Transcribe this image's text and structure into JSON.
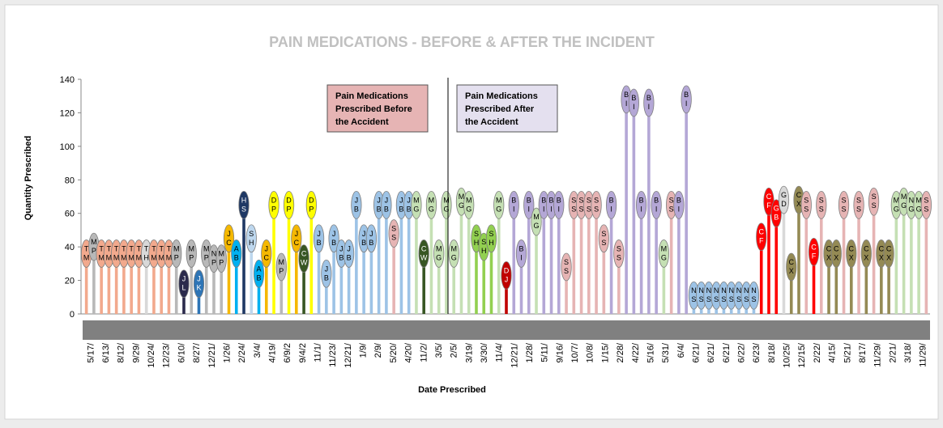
{
  "chart_data": {
    "type": "bar",
    "title": "PAIN MEDICATIONS - BEFORE & AFTER THE INCIDENT",
    "xlabel": "Date Prescribed",
    "ylabel": "Quantity Prescribed",
    "ylim": [
      0,
      140
    ],
    "yticks": [
      0,
      20,
      40,
      60,
      80,
      100,
      120,
      140
    ],
    "grid": false,
    "legend_boxes": [
      {
        "text": "Pain Medications Prescribed Before the Accident",
        "color": "#e6b4b4"
      },
      {
        "text": "Pain Medications Prescribed After the Accident",
        "color": "#e4e0ef"
      }
    ],
    "x_tick_labels": [
      "5/17/",
      "6/13/",
      "8/12/",
      "9/29/",
      "10/24/",
      "12/23/",
      "6/10/",
      "8/27/",
      "12/21/",
      "1/26/",
      "2/24/",
      "3/4/",
      "4/19/",
      "6/9/2",
      "9/4/2",
      "11/1/",
      "11/23/",
      "12/21/",
      "1/9/",
      "2/9/",
      "5/20/",
      "4/20/",
      "11/2/",
      "3/5/",
      "2/5/",
      "3/19/",
      "3/30/",
      "11/4/",
      "12/21/",
      "1/28/",
      "5/11/",
      "9/16/",
      "10/7/",
      "10/8/",
      "1/15/",
      "2/28/",
      "4/22/",
      "5/16/",
      "5/31/",
      "6/4/",
      "6/21/",
      "6/21/",
      "6/21/",
      "6/22/",
      "6/23/",
      "8/18/",
      "10/25/",
      "12/15/",
      "2/22/",
      "4/15/",
      "5/21/",
      "8/17/",
      "11/29/",
      "2/21/",
      "3/18/",
      "11/29/"
    ],
    "bars": [
      {
        "label": "TM",
        "value": 36,
        "color": "#f2a98d"
      },
      {
        "label": "MP",
        "value": 40,
        "color": "#b8b8b8"
      },
      {
        "label": "TM",
        "value": 36,
        "color": "#f2a98d"
      },
      {
        "label": "TM",
        "value": 36,
        "color": "#f2a98d"
      },
      {
        "label": "TM",
        "value": 36,
        "color": "#f2a98d"
      },
      {
        "label": "TM",
        "value": 36,
        "color": "#f2a98d"
      },
      {
        "label": "TM",
        "value": 36,
        "color": "#f2a98d"
      },
      {
        "label": "TM",
        "value": 36,
        "color": "#f2a98d"
      },
      {
        "label": "TH",
        "value": 36,
        "color": "#d8d8d8"
      },
      {
        "label": "TM",
        "value": 36,
        "color": "#f2a98d"
      },
      {
        "label": "TM",
        "value": 36,
        "color": "#f2a98d"
      },
      {
        "label": "TM",
        "value": 36,
        "color": "#f2a98d"
      },
      {
        "label": "MP",
        "value": 36,
        "color": "#b8b8b8"
      },
      {
        "label": "JL",
        "value": 18,
        "color": "#2b2a4c"
      },
      {
        "label": "MP",
        "value": 36,
        "color": "#b8b8b8"
      },
      {
        "label": "JK",
        "value": 18,
        "color": "#2e75b6"
      },
      {
        "label": "MP",
        "value": 36,
        "color": "#b8b8b8"
      },
      {
        "label": "NP",
        "value": 33,
        "color": "#b8b8b8"
      },
      {
        "label": "MP",
        "value": 33,
        "color": "#b8b8b8"
      },
      {
        "label": "JC",
        "value": 45,
        "color": "#f5b800"
      },
      {
        "label": "AB",
        "value": 36,
        "color": "#00b0f0"
      },
      {
        "label": "HS",
        "value": 65,
        "color": "#1f3864"
      },
      {
        "label": "SH",
        "value": 45,
        "color": "#bdd7ee"
      },
      {
        "label": "AB",
        "value": 24,
        "color": "#00b0f0"
      },
      {
        "label": "JC",
        "value": 36,
        "color": "#f5b800"
      },
      {
        "label": "DP",
        "value": 65,
        "color": "#ffff00"
      },
      {
        "label": "MP",
        "value": 28,
        "color": "#b8b8b8"
      },
      {
        "label": "DP",
        "value": 65,
        "color": "#ffff00"
      },
      {
        "label": "JC",
        "value": 45,
        "color": "#f5b800"
      },
      {
        "label": "CW",
        "value": 33,
        "color": "#375623"
      },
      {
        "label": "DP",
        "value": 65,
        "color": "#ffff00"
      },
      {
        "label": "JB",
        "value": 45,
        "color": "#9dc3e6"
      },
      {
        "label": "JB",
        "value": 24,
        "color": "#9dc3e6"
      },
      {
        "label": "JB",
        "value": 45,
        "color": "#9dc3e6"
      },
      {
        "label": "JB",
        "value": 36,
        "color": "#9dc3e6"
      },
      {
        "label": "JB",
        "value": 36,
        "color": "#9dc3e6"
      },
      {
        "label": "JB",
        "value": 65,
        "color": "#9dc3e6"
      },
      {
        "label": "JB",
        "value": 45,
        "color": "#9dc3e6"
      },
      {
        "label": "JB",
        "value": 45,
        "color": "#9dc3e6"
      },
      {
        "label": "JB",
        "value": 65,
        "color": "#9dc3e6"
      },
      {
        "label": "JB",
        "value": 65,
        "color": "#9dc3e6"
      },
      {
        "label": "SS",
        "value": 48,
        "color": "#e6b4b4"
      },
      {
        "label": "JB",
        "value": 65,
        "color": "#9dc3e6"
      },
      {
        "label": "JB",
        "value": 65,
        "color": "#9dc3e6"
      },
      {
        "label": "MG",
        "value": 65,
        "color": "#c5e0b4"
      },
      {
        "label": "CW",
        "value": 36,
        "color": "#375623"
      },
      {
        "label": "MG",
        "value": 65,
        "color": "#c5e0b4"
      },
      {
        "label": "MG",
        "value": 36,
        "color": "#c5e0b4"
      },
      {
        "label": "MG",
        "value": 65,
        "color": "#c5e0b4"
      },
      {
        "label": "MG",
        "value": 36,
        "color": "#c5e0b4"
      },
      {
        "label": "MG",
        "value": 67,
        "color": "#c5e0b4"
      },
      {
        "label": "MG",
        "value": 65,
        "color": "#c5e0b4"
      },
      {
        "label": "SH",
        "value": 45,
        "color": "#92d050"
      },
      {
        "label": "SH",
        "value": 40,
        "color": "#92d050"
      },
      {
        "label": "SH",
        "value": 45,
        "color": "#92d050"
      },
      {
        "label": "MG",
        "value": 65,
        "color": "#c5e0b4"
      },
      {
        "label": "DJ",
        "value": 23,
        "color": "#c00000"
      },
      {
        "label": "BI",
        "value": 65,
        "color": "#b4a7d6"
      },
      {
        "label": "BI",
        "value": 36,
        "color": "#b4a7d6"
      },
      {
        "label": "BI",
        "value": 65,
        "color": "#b4a7d6"
      },
      {
        "label": "MG",
        "value": 55,
        "color": "#c5e0b4"
      },
      {
        "label": "BI",
        "value": 65,
        "color": "#b4a7d6"
      },
      {
        "label": "BI",
        "value": 65,
        "color": "#b4a7d6"
      },
      {
        "label": "BI",
        "value": 65,
        "color": "#b4a7d6"
      },
      {
        "label": "SS",
        "value": 28,
        "color": "#e6b4b4"
      },
      {
        "label": "SS",
        "value": 65,
        "color": "#e6b4b4"
      },
      {
        "label": "SS",
        "value": 65,
        "color": "#e6b4b4"
      },
      {
        "label": "SS",
        "value": 65,
        "color": "#e6b4b4"
      },
      {
        "label": "SS",
        "value": 65,
        "color": "#e6b4b4"
      },
      {
        "label": "SS",
        "value": 45,
        "color": "#e6b4b4"
      },
      {
        "label": "BI",
        "value": 65,
        "color": "#b4a7d6"
      },
      {
        "label": "SS",
        "value": 36,
        "color": "#e6b4b4"
      },
      {
        "label": "BI",
        "value": 128,
        "color": "#b4a7d6"
      },
      {
        "label": "BI",
        "value": 126,
        "color": "#b4a7d6"
      },
      {
        "label": "BI",
        "value": 65,
        "color": "#b4a7d6"
      },
      {
        "label": "BI",
        "value": 126,
        "color": "#b4a7d6"
      },
      {
        "label": "BI",
        "value": 65,
        "color": "#b4a7d6"
      },
      {
        "label": "MG",
        "value": 36,
        "color": "#c5e0b4"
      },
      {
        "label": "SS",
        "value": 65,
        "color": "#e6b4b4"
      },
      {
        "label": "BI",
        "value": 65,
        "color": "#b4a7d6"
      },
      {
        "label": "BI",
        "value": 128,
        "color": "#b4a7d6"
      },
      {
        "label": "NS",
        "value": 11,
        "color": "#9dc3e6"
      },
      {
        "label": "NS",
        "value": 11,
        "color": "#9dc3e6"
      },
      {
        "label": "NS",
        "value": 11,
        "color": "#9dc3e6"
      },
      {
        "label": "NS",
        "value": 11,
        "color": "#9dc3e6"
      },
      {
        "label": "NS",
        "value": 11,
        "color": "#9dc3e6"
      },
      {
        "label": "NS",
        "value": 11,
        "color": "#9dc3e6"
      },
      {
        "label": "NS",
        "value": 11,
        "color": "#9dc3e6"
      },
      {
        "label": "NS",
        "value": 11,
        "color": "#9dc3e6"
      },
      {
        "label": "NS",
        "value": 11,
        "color": "#9dc3e6"
      },
      {
        "label": "CF",
        "value": 46,
        "color": "#ff0000"
      },
      {
        "label": "CF",
        "value": 67,
        "color": "#ff0000"
      },
      {
        "label": "GB",
        "value": 60,
        "color": "#ff0000"
      },
      {
        "label": "GD",
        "value": 68,
        "color": "#d9d9d9"
      },
      {
        "label": "CX",
        "value": 28,
        "color": "#948a54"
      },
      {
        "label": "CX",
        "value": 68,
        "color": "#948a54"
      },
      {
        "label": "SS",
        "value": 65,
        "color": "#e6b4b4"
      },
      {
        "label": "CF",
        "value": 37,
        "color": "#ff0000"
      },
      {
        "label": "SS",
        "value": 65,
        "color": "#e6b4b4"
      },
      {
        "label": "CX",
        "value": 36,
        "color": "#948a54"
      },
      {
        "label": "CX",
        "value": 36,
        "color": "#948a54"
      },
      {
        "label": "SS",
        "value": 65,
        "color": "#e6b4b4"
      },
      {
        "label": "CX",
        "value": 36,
        "color": "#948a54"
      },
      {
        "label": "SS",
        "value": 65,
        "color": "#e6b4b4"
      },
      {
        "label": "CX",
        "value": 36,
        "color": "#948a54"
      },
      {
        "label": "SS",
        "value": 67,
        "color": "#e6b4b4"
      },
      {
        "label": "CX",
        "value": 36,
        "color": "#948a54"
      },
      {
        "label": "CX",
        "value": 36,
        "color": "#948a54"
      },
      {
        "label": "MG",
        "value": 65,
        "color": "#c5e0b4"
      },
      {
        "label": "MG",
        "value": 67,
        "color": "#c5e0b4"
      },
      {
        "label": "NG",
        "value": 65,
        "color": "#c5e0b4"
      },
      {
        "label": "MG",
        "value": 65,
        "color": "#c5e0b4"
      },
      {
        "label": "SS",
        "value": 65,
        "color": "#e6b4b4"
      }
    ]
  }
}
